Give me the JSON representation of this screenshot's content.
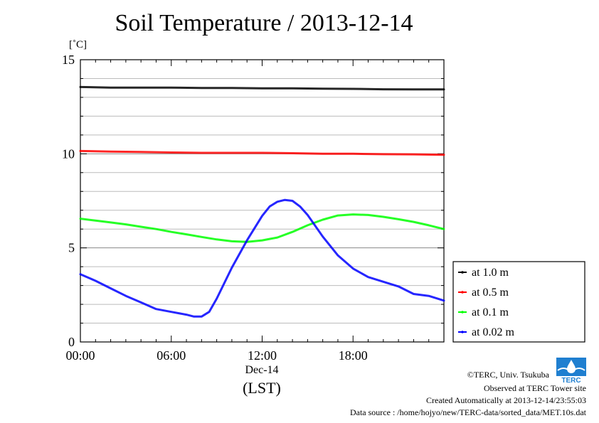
{
  "title": "Soil Temperature / 2013-12-14",
  "unit_label": "[˚C]",
  "date_label": "Dec-14",
  "lst_label": "(LST)",
  "footer": {
    "copyright": "©TERC, Univ. Tsukuba",
    "observed": "Observed at TERC Tower site",
    "created": "Created Automatically at 2013-12-14/23:55:03",
    "source": "Data source : /home/hojyo/new/TERC-data/sorted_data/MET.10s.dat"
  },
  "logo_text": "TERC",
  "chart_data": {
    "type": "line",
    "title": "Soil Temperature / 2013-12-14",
    "xlabel": "(LST)",
    "ylabel": "[˚C]",
    "xlim": [
      0,
      24
    ],
    "ylim": [
      0,
      15
    ],
    "x_ticks": [
      0,
      6,
      12,
      18
    ],
    "x_tick_labels": [
      "00:00",
      "06:00",
      "12:00",
      "18:00"
    ],
    "y_ticks": [
      0,
      5,
      10,
      15
    ],
    "y_tick_labels": [
      "0",
      "5",
      "10",
      "15"
    ],
    "grid": true,
    "legend_position": "right",
    "series": [
      {
        "name": "at 1.0 m",
        "color": "#000000",
        "x": [
          0,
          2,
          4,
          6,
          8,
          10,
          12,
          14,
          16,
          18,
          20,
          22,
          24
        ],
        "values": [
          13.55,
          13.52,
          13.52,
          13.52,
          13.5,
          13.5,
          13.48,
          13.48,
          13.46,
          13.45,
          13.43,
          13.42,
          13.42
        ]
      },
      {
        "name": "at 0.5 m",
        "color": "#ff0000",
        "x": [
          0,
          2,
          4,
          6,
          8,
          10,
          12,
          14,
          16,
          18,
          20,
          22,
          24
        ],
        "values": [
          10.15,
          10.12,
          10.1,
          10.07,
          10.05,
          10.05,
          10.05,
          10.03,
          10.0,
          10.0,
          9.98,
          9.97,
          9.95
        ]
      },
      {
        "name": "at 0.1 m",
        "color": "#00ff00",
        "x": [
          0,
          1,
          2,
          3,
          4,
          5,
          6,
          7,
          8,
          9,
          10,
          11,
          12,
          13,
          14,
          15,
          16,
          17,
          18,
          19,
          20,
          21,
          22,
          23,
          24
        ],
        "values": [
          6.55,
          6.45,
          6.35,
          6.25,
          6.12,
          6.0,
          5.85,
          5.72,
          5.58,
          5.45,
          5.35,
          5.32,
          5.4,
          5.55,
          5.85,
          6.2,
          6.5,
          6.72,
          6.78,
          6.75,
          6.65,
          6.52,
          6.38,
          6.2,
          6.0
        ]
      },
      {
        "name": "at 0.02 m",
        "color": "#0000ff",
        "x": [
          0,
          1,
          2,
          3,
          4,
          5,
          6,
          7,
          7.5,
          8,
          8.5,
          9,
          10,
          11,
          12,
          12.5,
          13,
          13.5,
          14,
          14.5,
          15,
          16,
          17,
          18,
          19,
          20,
          21,
          22,
          23,
          24
        ],
        "values": [
          3.6,
          3.25,
          2.85,
          2.45,
          2.1,
          1.75,
          1.6,
          1.45,
          1.35,
          1.35,
          1.6,
          2.3,
          3.95,
          5.4,
          6.7,
          7.2,
          7.45,
          7.55,
          7.5,
          7.2,
          6.75,
          5.6,
          4.6,
          3.9,
          3.45,
          3.2,
          2.95,
          2.55,
          2.45,
          2.2
        ]
      }
    ]
  }
}
